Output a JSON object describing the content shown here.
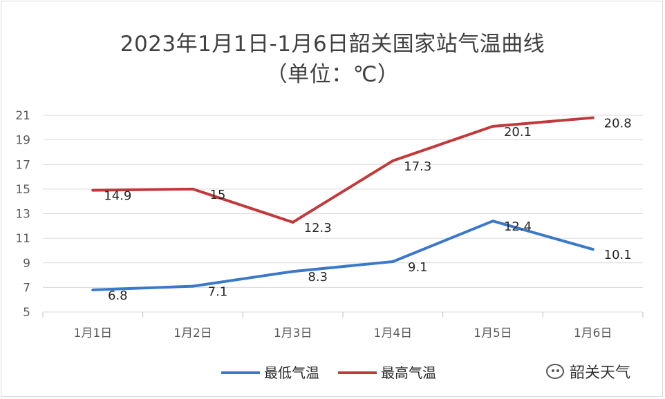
{
  "chart_data": {
    "type": "line",
    "title": "2023年1月1日-1月6日韶关国家站气温曲线",
    "subtitle": "（单位：℃）",
    "categories": [
      "1月1日",
      "1月2日",
      "1月3日",
      "1月4日",
      "1月5日",
      "1月6日"
    ],
    "y_ticks": [
      "21",
      "19",
      "17",
      "15",
      "13",
      "11",
      "9",
      "7",
      "5"
    ],
    "ylim": [
      5,
      21
    ],
    "grid": true,
    "legend_position": "bottom",
    "series": [
      {
        "name": "最低气温",
        "color": "#3a78c9",
        "values": [
          6.8,
          7.1,
          8.3,
          9.1,
          12.4,
          10.1
        ],
        "labels": [
          "6.8",
          "7.1",
          "8.3",
          "9.1",
          "12.4",
          "10.1"
        ]
      },
      {
        "name": "最高气温",
        "color": "#c0393b",
        "values": [
          14.9,
          15,
          12.3,
          17.3,
          20.1,
          20.8
        ],
        "labels": [
          "14.9",
          "15",
          "12.3",
          "17.3",
          "20.1",
          "20.8"
        ]
      }
    ]
  },
  "watermark": {
    "text": "韶关天气",
    "icon": "wechat-icon"
  }
}
